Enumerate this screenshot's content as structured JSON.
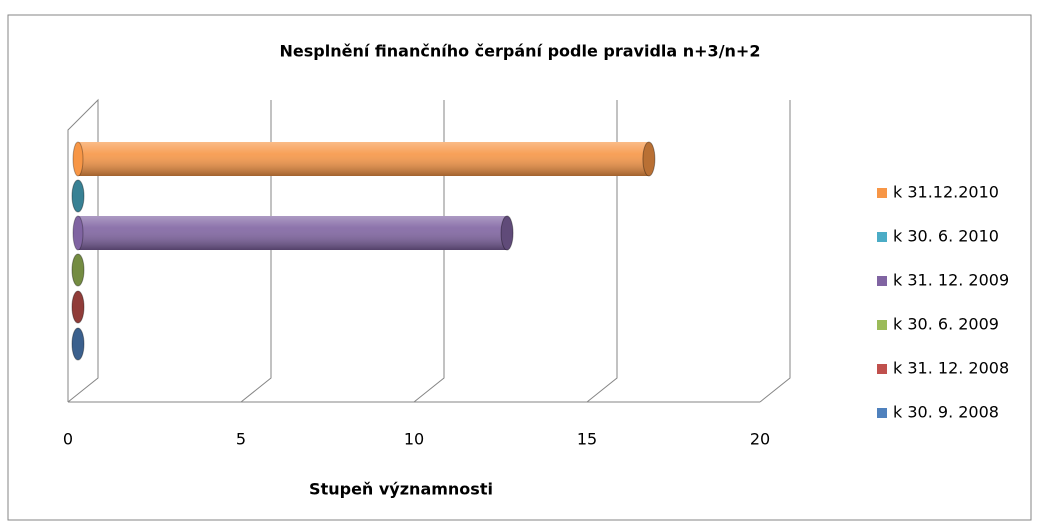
{
  "chart_data": {
    "type": "bar3d-horizontal",
    "title": "Nesplnění finančního čerpání podle pravidla n+3/n+2",
    "xlabel": "Stupeň významnosti",
    "series": [
      {
        "name": "k 30. 9. 2008",
        "color": "#4f81bd",
        "values": [
          0
        ]
      },
      {
        "name": "k 31. 12. 2008",
        "color": "#c0504d",
        "values": [
          0
        ]
      },
      {
        "name": "k 30. 6. 2009",
        "color": "#9bbb59",
        "values": [
          0
        ]
      },
      {
        "name": "k 31. 12. 2009",
        "color": "#8064a2",
        "values": [
          12.4
        ]
      },
      {
        "name": "k 30. 6. 2010",
        "color": "#4bacc6",
        "values": [
          0
        ]
      },
      {
        "name": "k 31.12.2010",
        "color": "#f79646",
        "values": [
          16.5
        ]
      }
    ],
    "xlim": [
      0,
      20
    ],
    "xticks": [
      0,
      5,
      10,
      15,
      20
    ],
    "grid": true,
    "legend": "right"
  }
}
